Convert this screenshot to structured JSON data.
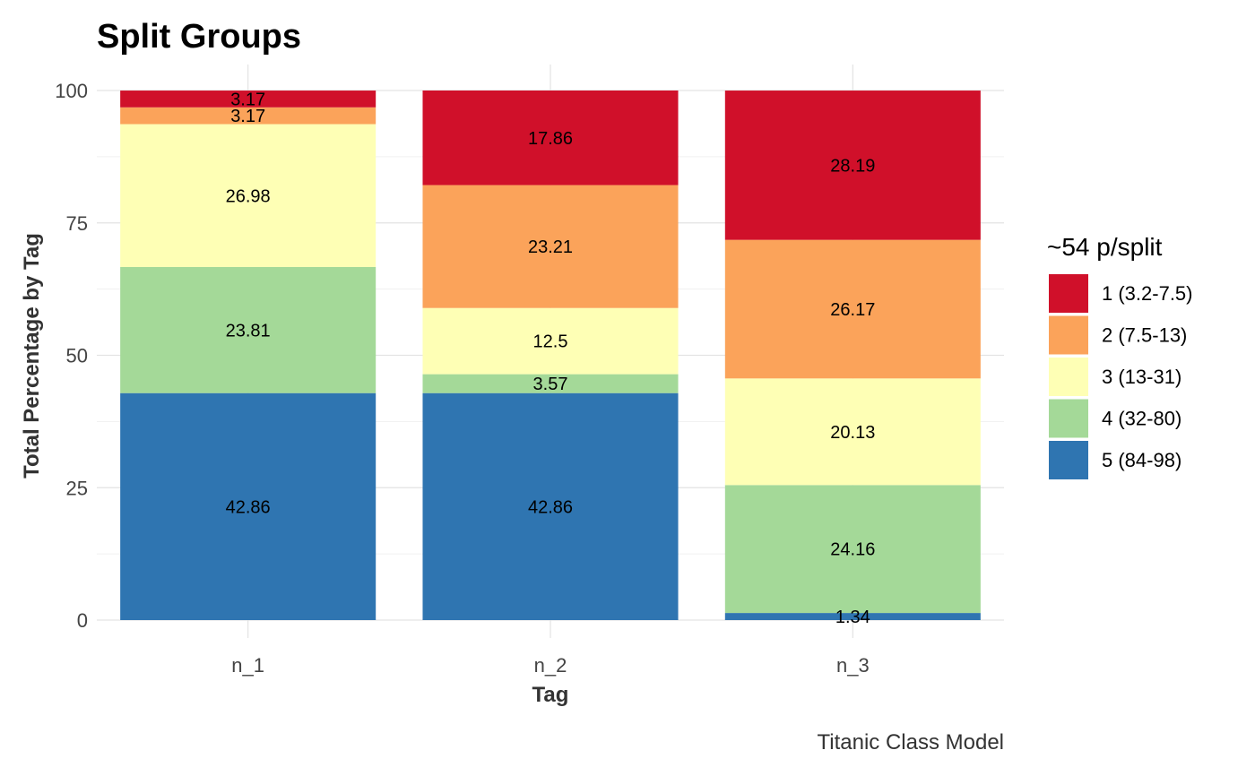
{
  "chart_data": {
    "type": "bar",
    "stacked": true,
    "title": "Split Groups",
    "xlabel": "Tag",
    "ylabel": "Total Percentage by Tag",
    "caption": "Titanic Class Model",
    "categories": [
      "n_1",
      "n_2",
      "n_3"
    ],
    "ylim": [
      0,
      100
    ],
    "yticks": [
      "0",
      "25",
      "50",
      "75",
      "100"
    ],
    "grid": true,
    "legend": {
      "title": "~54 p/split",
      "position": "right"
    },
    "series": [
      {
        "name": "1 (3.2-7.5)",
        "color": "#d0102a",
        "values": [
          3.17,
          17.86,
          28.19
        ],
        "labels": [
          "3.17",
          "17.86",
          "28.19"
        ]
      },
      {
        "name": "2 (7.5-13)",
        "color": "#fba35a",
        "values": [
          3.17,
          23.21,
          26.17
        ],
        "labels": [
          "3.17",
          "23.21",
          "26.17"
        ]
      },
      {
        "name": "3 (13-31)",
        "color": "#feffb5",
        "values": [
          26.98,
          12.5,
          20.13
        ],
        "labels": [
          "26.98",
          "12.5",
          "20.13"
        ]
      },
      {
        "name": "4 (32-80)",
        "color": "#a4d998",
        "values": [
          23.81,
          3.57,
          24.16
        ],
        "labels": [
          "23.81",
          "3.57",
          "24.16"
        ]
      },
      {
        "name": "5 (84-98)",
        "color": "#2f75b1",
        "values": [
          42.86,
          42.86,
          1.34
        ],
        "labels": [
          "42.86",
          "42.86",
          "1.34"
        ]
      }
    ]
  }
}
